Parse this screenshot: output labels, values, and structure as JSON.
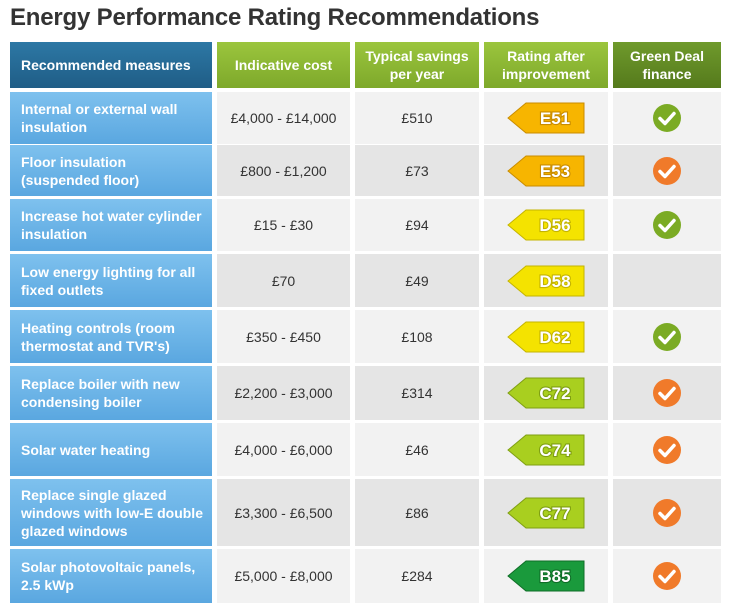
{
  "title": "Energy Performance Rating Recommendations",
  "headers": {
    "measure": "Recommended measures",
    "cost": "Indicative cost",
    "savings": "Typical savings per year",
    "rating": "Rating after improvement",
    "finance": "Green Deal finance"
  },
  "colors": {
    "header_measure": "#2d78a5",
    "header_green": "#8cb834",
    "header_dark_green": "#6a922a",
    "measure_cell": "#6ab4e8",
    "rating_E": "#f7b500",
    "rating_D": "#f4e300",
    "rating_C": "#a9cf1f",
    "rating_B": "#1a9a3c",
    "check_green": "#7bab24",
    "check_orange": "#f07a2a"
  },
  "rows": [
    {
      "measure": "Internal or external wall insulation",
      "cost": "£4,000 -  £14,000",
      "savings": "£510",
      "rating": "E51",
      "band": "E",
      "finance": "green-check-icon"
    },
    {
      "measure": "Floor insulation (suspended floor)",
      "cost": "£800 -  £1,200",
      "savings": "£73",
      "rating": "E53",
      "band": "E",
      "finance": "orange-check-icon"
    },
    {
      "measure": "Increase hot water cylinder insulation",
      "cost": "£15 -  £30",
      "savings": "£94",
      "rating": "D56",
      "band": "D",
      "finance": "green-check-icon"
    },
    {
      "measure": "Low energy lighting for all fixed outlets",
      "cost": "£70",
      "savings": "£49",
      "rating": "D58",
      "band": "D",
      "finance": ""
    },
    {
      "measure": "Heating controls (room thermostat and TVR's)",
      "cost": "£350 -  £450",
      "savings": "£108",
      "rating": "D62",
      "band": "D",
      "finance": "green-check-icon"
    },
    {
      "measure": "Replace boiler with new condensing boiler",
      "cost": "£2,200 -  £3,000",
      "savings": "£314",
      "rating": "C72",
      "band": "C",
      "finance": "orange-check-icon"
    },
    {
      "measure": "Solar water heating",
      "cost": "£4,000 -  £6,000",
      "savings": "£46",
      "rating": "C74",
      "band": "C",
      "finance": "orange-check-icon"
    },
    {
      "measure": "Replace single glazed windows with low-E double glazed windows",
      "cost": "£3,300 -  £6,500",
      "savings": "£86",
      "rating": "C77",
      "band": "C",
      "finance": "orange-check-icon"
    },
    {
      "measure": "Solar photovoltaic panels, 2.5 kWp",
      "cost": "£5,000 -  £8,000",
      "savings": "£284",
      "rating": "B85",
      "band": "B",
      "finance": "orange-check-icon"
    }
  ]
}
